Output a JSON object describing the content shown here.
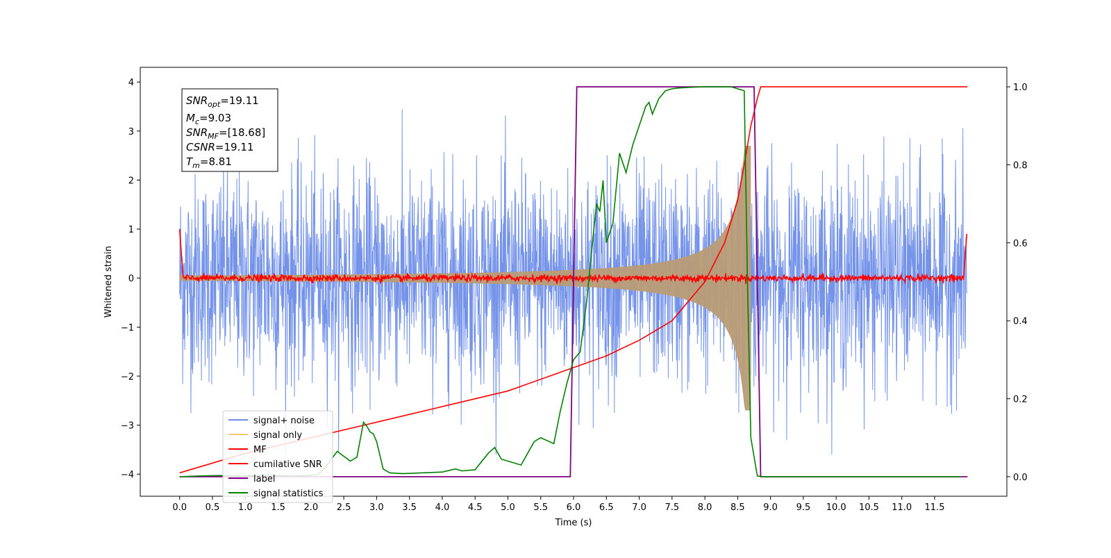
{
  "chart_data": {
    "type": "line",
    "xlabel": "Time (s)",
    "ylabel": "Whitened strain",
    "xlim": [
      -0.6,
      12.6
    ],
    "ylim_left": [
      -4.45,
      4.3
    ],
    "ylim_right": [
      -0.05,
      1.05
    ],
    "x_ticks": [
      "0.0",
      "0.5",
      "1.0",
      "1.5",
      "2.0",
      "2.5",
      "3.0",
      "3.5",
      "4.0",
      "4.5",
      "5.0",
      "5.5",
      "6.0",
      "6.5",
      "7.0",
      "7.5",
      "8.0",
      "8.5",
      "9.0",
      "9.5",
      "10.0",
      "10.5",
      "11.0",
      "11.5"
    ],
    "y_ticks_left": [
      "4",
      "3",
      "2",
      "1",
      "0",
      "−1",
      "−2",
      "−3",
      "−4"
    ],
    "y_ticks_right": [
      "1.0",
      "0.8",
      "0.6",
      "0.4",
      "0.2",
      "0.0"
    ],
    "legend_position": "lower-left",
    "colors": {
      "signal_noise": "#6d8de8",
      "signal_only": "#f5c97a",
      "signal_only_overlap": "#b99c76",
      "mf": "#ff0000",
      "csnr": "#ff0000",
      "label": "#800080",
      "statistics": "#008000"
    },
    "series": [
      {
        "name": "signal+ noise",
        "axis": "left",
        "description_visible": "whitened noise, amplitude ~ +/-3 to 4, t = 0 to 12 s"
      },
      {
        "name": "signal only",
        "axis": "left",
        "chirp_start": 0.0,
        "chirp_peak_time": 8.7,
        "peak_amplitude": 2.7
      },
      {
        "name": "MF",
        "axis": "left",
        "baseline": 0.0,
        "edge_value": 1.0
      },
      {
        "name": "cumilative SNR",
        "axis": "right",
        "x": [
          0.0,
          1.0,
          2.0,
          3.0,
          4.0,
          5.0,
          6.0,
          6.5,
          7.0,
          7.5,
          8.0,
          8.3,
          8.5,
          8.6,
          8.7,
          8.8,
          8.85,
          12.0
        ],
        "y": [
          0.01,
          0.06,
          0.1,
          0.14,
          0.18,
          0.22,
          0.28,
          0.31,
          0.35,
          0.4,
          0.5,
          0.6,
          0.71,
          0.8,
          0.9,
          0.97,
          1.0,
          1.0
        ]
      },
      {
        "name": "label",
        "axis": "right",
        "x": [
          0.0,
          5.95,
          6.05,
          8.75,
          8.85,
          12.0
        ],
        "y": [
          0.0,
          0.0,
          1.0,
          1.0,
          0.0,
          0.0
        ]
      },
      {
        "name": "signal statistics",
        "axis": "right",
        "x": [
          0.0,
          0.3,
          0.6,
          0.9,
          1.2,
          1.5,
          1.8,
          2.1,
          2.2,
          2.4,
          2.6,
          2.7,
          2.8,
          2.85,
          2.9,
          2.95,
          3.0,
          3.1,
          3.2,
          3.4,
          3.7,
          4.0,
          4.2,
          4.3,
          4.5,
          4.7,
          4.8,
          4.9,
          5.0,
          5.2,
          5.4,
          5.5,
          5.7,
          5.8,
          5.9,
          6.0,
          6.1,
          6.2,
          6.3,
          6.35,
          6.4,
          6.45,
          6.5,
          6.6,
          6.7,
          6.8,
          6.9,
          7.0,
          7.1,
          7.15,
          7.2,
          7.3,
          7.4,
          7.5,
          7.6,
          7.8,
          8.0,
          8.2,
          8.4,
          8.6,
          8.65,
          8.7,
          8.8,
          8.9,
          9.0,
          10.0,
          11.0,
          11.9
        ],
        "y": [
          0.0,
          0.002,
          0.003,
          0.002,
          0.004,
          0.003,
          0.002,
          0.005,
          0.02,
          0.065,
          0.04,
          0.05,
          0.14,
          0.13,
          0.115,
          0.11,
          0.09,
          0.02,
          0.01,
          0.008,
          0.01,
          0.012,
          0.02,
          0.015,
          0.018,
          0.06,
          0.075,
          0.045,
          0.04,
          0.03,
          0.09,
          0.1,
          0.085,
          0.17,
          0.24,
          0.3,
          0.32,
          0.45,
          0.62,
          0.7,
          0.68,
          0.76,
          0.6,
          0.65,
          0.83,
          0.78,
          0.85,
          0.9,
          0.95,
          0.96,
          0.93,
          0.97,
          0.99,
          0.995,
          0.997,
          0.999,
          1.0,
          1.0,
          1.0,
          0.99,
          0.5,
          0.1,
          0.002,
          0.0,
          0.0,
          0.0,
          0.0,
          0.0
        ]
      }
    ],
    "annotation_box": {
      "snr_opt_value": "=19.11",
      "mc_value": "=9.03",
      "snr_mf_value": "=[18.68]",
      "csnr_value": "=19.11",
      "tm_value": "=8.81"
    }
  }
}
